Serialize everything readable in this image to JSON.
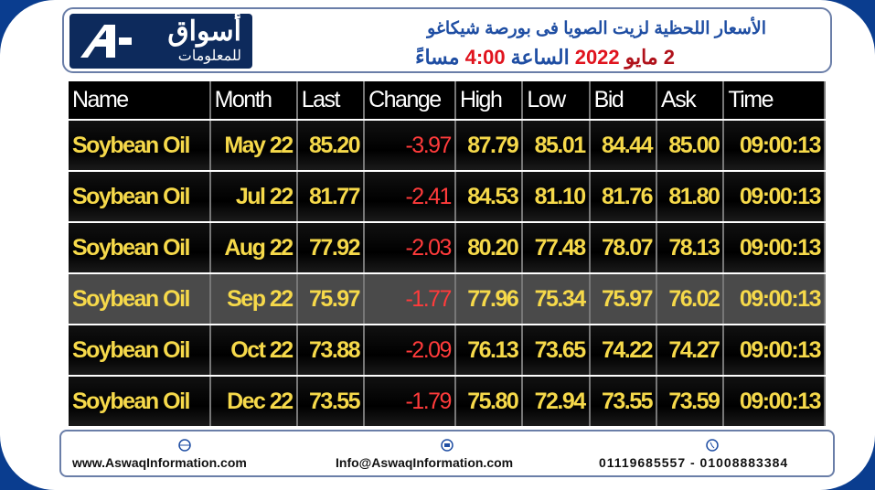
{
  "header": {
    "logo": {
      "name": "أسواق",
      "sub": "للمعلومات"
    },
    "title": "الأسعار اللحظية لزيت الصويا فى بورصة شيكاغو",
    "subtitle": [
      {
        "text": "2 مايو",
        "color": "#b0121b"
      },
      {
        "text": "2022",
        "color": "#e0141e"
      },
      {
        "text": "الساعة",
        "color": "#1f4ea3"
      },
      {
        "text": "4:00",
        "color": "#e0141e"
      },
      {
        "text": "مساءً",
        "color": "#1f4ea3"
      }
    ]
  },
  "table": {
    "columns": [
      "Name",
      "Month",
      "Last",
      "Change",
      "High",
      "Low",
      "Bid",
      "Ask",
      "Time"
    ],
    "rows": [
      [
        "Soybean Oil",
        "May 22",
        "85.20",
        "-3.97",
        "87.79",
        "85.01",
        "84.44",
        "85.00",
        "09:00:13"
      ],
      [
        "Soybean Oil",
        "Jul 22",
        "81.77",
        "-2.41",
        "84.53",
        "81.10",
        "81.76",
        "81.80",
        "09:00:13"
      ],
      [
        "Soybean Oil",
        "Aug 22",
        "77.92",
        "-2.03",
        "80.20",
        "77.48",
        "78.07",
        "78.13",
        "09:00:13"
      ],
      [
        "Soybean Oil",
        "Sep 22",
        "75.97",
        "-1.77",
        "77.96",
        "75.34",
        "75.97",
        "76.02",
        "09:00:13"
      ],
      [
        "Soybean Oil",
        "Oct 22",
        "73.88",
        "-2.09",
        "76.13",
        "73.65",
        "74.22",
        "74.27",
        "09:00:13"
      ],
      [
        "Soybean Oil",
        "Dec 22",
        "73.55",
        "-1.79",
        "75.80",
        "72.94",
        "73.55",
        "73.59",
        "09:00:13"
      ]
    ],
    "highlight_row": 3
  },
  "footer": {
    "website": "www.AswaqInformation.com",
    "email": "Info@AswaqInformation.com",
    "phone": "01119685557 - 01008883384"
  }
}
